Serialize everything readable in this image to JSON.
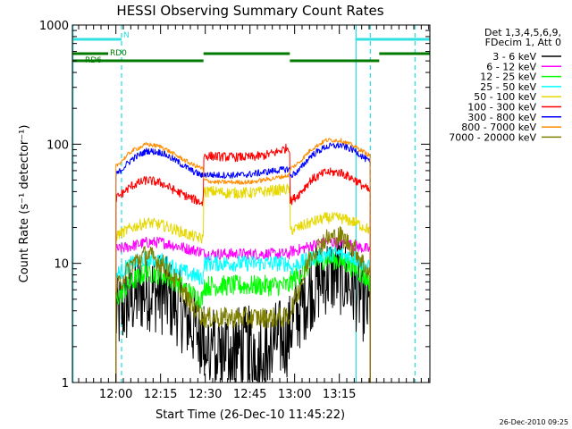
{
  "chart_data": {
    "type": "line",
    "title": "HESSI Observing Summary Count Rates",
    "xlabel": "Start Time (26-Dec-10 11:45:22)",
    "ylabel": "Count Rate (s⁻¹ detector⁻¹)",
    "yscale": "log",
    "ylim": [
      1,
      1000
    ],
    "xlim": [
      0,
      120
    ],
    "x_units": "minutes after 11:45:22",
    "yticks": [
      {
        "value": 1,
        "label": "1"
      },
      {
        "value": 10,
        "label": "10"
      },
      {
        "value": 100,
        "label": "100"
      },
      {
        "value": 1000,
        "label": "1000"
      }
    ],
    "xticks": [
      {
        "value": 14.6,
        "label": "12:00"
      },
      {
        "value": 29.6,
        "label": "12:15"
      },
      {
        "value": 44.6,
        "label": "12:30"
      },
      {
        "value": 59.6,
        "label": "12:45"
      },
      {
        "value": 74.6,
        "label": "13:00"
      },
      {
        "value": 89.6,
        "label": "13:15"
      }
    ],
    "legend": {
      "position": "right",
      "header": [
        "Det 1,3,4,5,6,9,",
        "FDecim 1, Att 0"
      ]
    },
    "flags": {
      "lines": [
        {
          "name": "N",
          "color": "#33e0e0",
          "y_frac": 0.04,
          "segments": [
            [
              0,
              16.5
            ],
            [
              95,
              120
            ]
          ]
        },
        {
          "name": "RD0",
          "color": "#007a00",
          "y_frac": 0.08,
          "segments": [
            [
              0,
              12
            ],
            [
              44,
              73
            ],
            [
              103,
              120
            ]
          ]
        },
        {
          "name": "RD6",
          "color": "#007a00",
          "y_frac": 0.1,
          "segments": [
            [
              0,
              44
            ],
            [
              73,
              103
            ]
          ]
        }
      ],
      "verticals": [
        {
          "x": 0.2,
          "color": "#33e0e0",
          "dashed": false
        },
        {
          "x": 95.2,
          "color": "#33e0e0",
          "dashed": false
        },
        {
          "x": 16.5,
          "color": "#33e0e0",
          "dashed": true
        },
        {
          "x": 100,
          "color": "#33e0e0",
          "dashed": true
        },
        {
          "x": 115,
          "color": "#33e0e0",
          "dashed": true
        }
      ]
    },
    "data_gaps": [
      [
        0,
        14.6
      ],
      [
        100,
        120
      ]
    ],
    "segment_breaks": [
      44,
      73
    ],
    "series": [
      {
        "name": "3 - 6 keV",
        "color": "#000000",
        "x": [
          14.6,
          20,
          25,
          30,
          35,
          40,
          43.9,
          44.1,
          48,
          52,
          56,
          60,
          64,
          68,
          72.9,
          73.1,
          76,
          80,
          85,
          90,
          95,
          99.9
        ],
        "y": [
          3.5,
          5,
          6,
          5.5,
          4.5,
          3,
          2.5,
          2.2,
          2,
          2,
          2,
          2,
          2,
          2.2,
          2.5,
          3,
          4,
          6,
          8,
          8,
          6,
          4
        ]
      },
      {
        "name": "6 - 12 keV",
        "color": "#ff00ff",
        "x": [
          14.6,
          20,
          25,
          30,
          35,
          40,
          43.9,
          44.1,
          48,
          52,
          56,
          60,
          64,
          68,
          72.9,
          73.1,
          76,
          80,
          85,
          90,
          95,
          99.9
        ],
        "y": [
          13,
          14,
          15,
          15,
          14,
          13,
          12.5,
          12,
          12,
          12,
          12,
          12,
          12,
          12,
          12,
          12.5,
          13,
          14,
          15,
          15,
          14,
          13
        ]
      },
      {
        "name": "12 - 25 keV",
        "color": "#00ff00",
        "x": [
          14.6,
          20,
          25,
          30,
          35,
          40,
          43.9,
          44.1,
          48,
          52,
          56,
          60,
          64,
          68,
          72.9,
          73.1,
          76,
          80,
          85,
          90,
          95,
          99.9
        ],
        "y": [
          5,
          7,
          8.5,
          8,
          7,
          5.5,
          5,
          6.5,
          6.5,
          6.5,
          6.5,
          6.5,
          6.5,
          6.5,
          6.5,
          7,
          8,
          10,
          11,
          10.5,
          9,
          7
        ]
      },
      {
        "name": "25 - 50 keV",
        "color": "#00ffff",
        "x": [
          14.6,
          20,
          25,
          30,
          35,
          40,
          43.9,
          44.1,
          48,
          52,
          56,
          60,
          64,
          68,
          72.9,
          73.1,
          76,
          80,
          85,
          90,
          95,
          99.9
        ],
        "y": [
          8,
          10,
          11,
          10.5,
          9,
          8,
          7.5,
          10,
          10,
          10,
          10,
          10,
          10,
          10,
          10,
          9,
          10,
          11,
          12,
          12,
          11,
          9
        ]
      },
      {
        "name": "50 - 100 keV",
        "color": "#e6d800",
        "x": [
          14.6,
          20,
          25,
          30,
          35,
          40,
          43.9,
          44.1,
          48,
          52,
          56,
          60,
          64,
          68,
          72.9,
          73.1,
          76,
          80,
          85,
          90,
          95,
          99.9
        ],
        "y": [
          17,
          20,
          22,
          21,
          19,
          17,
          16,
          40,
          40,
          39,
          39,
          39,
          40,
          41,
          42,
          19,
          20,
          22,
          24,
          24,
          22,
          19
        ]
      },
      {
        "name": "100 - 300 keV",
        "color": "#ff0000",
        "x": [
          14.6,
          20,
          25,
          30,
          35,
          40,
          43.9,
          44.1,
          48,
          52,
          56,
          60,
          64,
          68,
          72.9,
          73.1,
          76,
          80,
          85,
          90,
          95,
          99.9
        ],
        "y": [
          35,
          45,
          50,
          47,
          40,
          35,
          32,
          80,
          79,
          78,
          78,
          78,
          80,
          85,
          95,
          33,
          38,
          50,
          58,
          58,
          50,
          40
        ]
      },
      {
        "name": "300 - 800 keV",
        "color": "#0000ff",
        "x": [
          14.6,
          20,
          25,
          30,
          35,
          40,
          43.9,
          44.1,
          48,
          52,
          56,
          60,
          64,
          68,
          72.9,
          73.1,
          76,
          80,
          85,
          90,
          95,
          99.9
        ],
        "y": [
          55,
          75,
          88,
          85,
          72,
          60,
          54,
          56,
          55,
          55,
          55,
          56,
          58,
          60,
          62,
          54,
          60,
          80,
          95,
          98,
          88,
          70
        ]
      },
      {
        "name": "800 - 7000 keV",
        "color": "#ff8c00",
        "x": [
          14.6,
          20,
          25,
          30,
          35,
          40,
          43.9,
          44.1,
          48,
          52,
          56,
          60,
          64,
          68,
          72.9,
          73.1,
          76,
          80,
          85,
          90,
          95,
          99.9
        ],
        "y": [
          65,
          88,
          100,
          95,
          80,
          68,
          62,
          50,
          48,
          48,
          48,
          48,
          50,
          52,
          55,
          62,
          70,
          90,
          108,
          108,
          95,
          80
        ]
      },
      {
        "name": "7000 - 20000 keV",
        "color": "#808000",
        "x": [
          14.6,
          20,
          25,
          30,
          35,
          40,
          43.9,
          44.1,
          48,
          52,
          56,
          60,
          64,
          68,
          72.9,
          73.1,
          76,
          80,
          85,
          90,
          95,
          99.9
        ],
        "y": [
          6,
          10,
          12,
          10,
          7,
          4.5,
          3.5,
          3.5,
          3.5,
          3.5,
          3.5,
          3.5,
          3.5,
          3.5,
          3.5,
          4,
          6,
          12,
          16,
          17,
          13,
          8
        ]
      }
    ]
  },
  "timestamp": "26-Dec-2010 09:25"
}
